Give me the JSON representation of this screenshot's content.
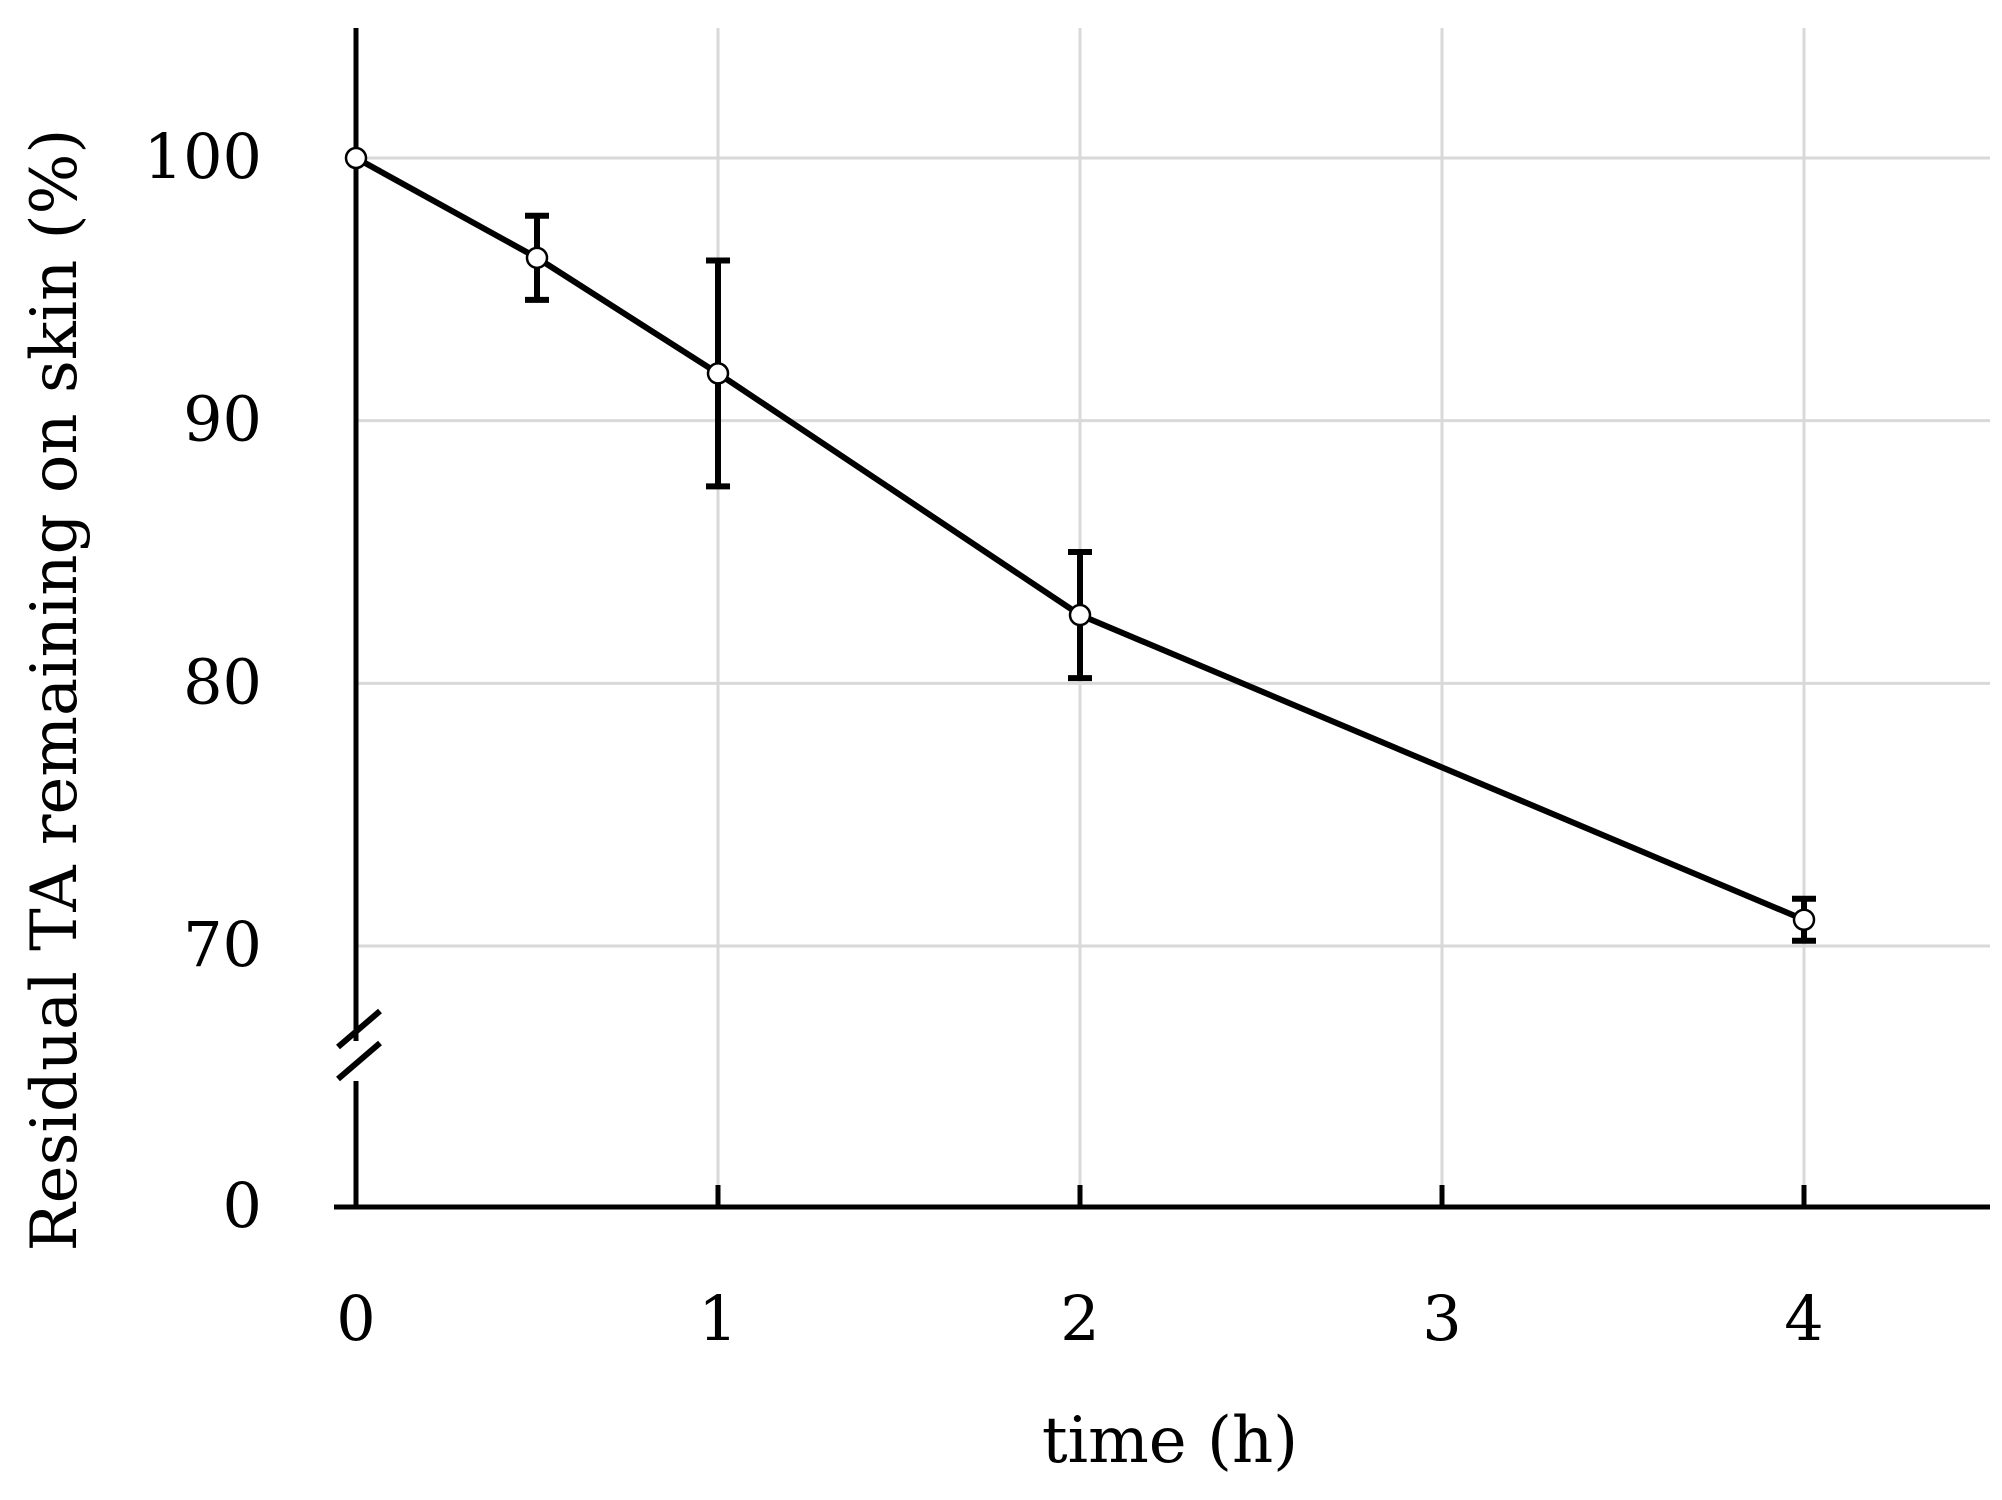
{
  "chart_data": {
    "type": "line",
    "xlabel": "time (h)",
    "ylabel": "Residual TA remaining on skin (%)",
    "x_ticks": [
      "0",
      "1",
      "2",
      "3",
      "4"
    ],
    "y_ticks": [
      "0",
      "70",
      "80",
      "90",
      "100"
    ],
    "xlim": [
      0,
      4.5
    ],
    "ylim": [
      0,
      105
    ],
    "y_axis_break": [
      0,
      65
    ],
    "grid": true,
    "legend": "none",
    "series": [
      {
        "x": [
          0,
          0.5,
          1,
          2,
          4
        ],
        "y": [
          100,
          96.2,
          91.8,
          82.6,
          71.0
        ],
        "error": [
          0,
          1.6,
          4.3,
          2.4,
          0.8
        ]
      }
    ]
  },
  "colors": {
    "line": "#000000",
    "grid": "#d9d9d9"
  }
}
